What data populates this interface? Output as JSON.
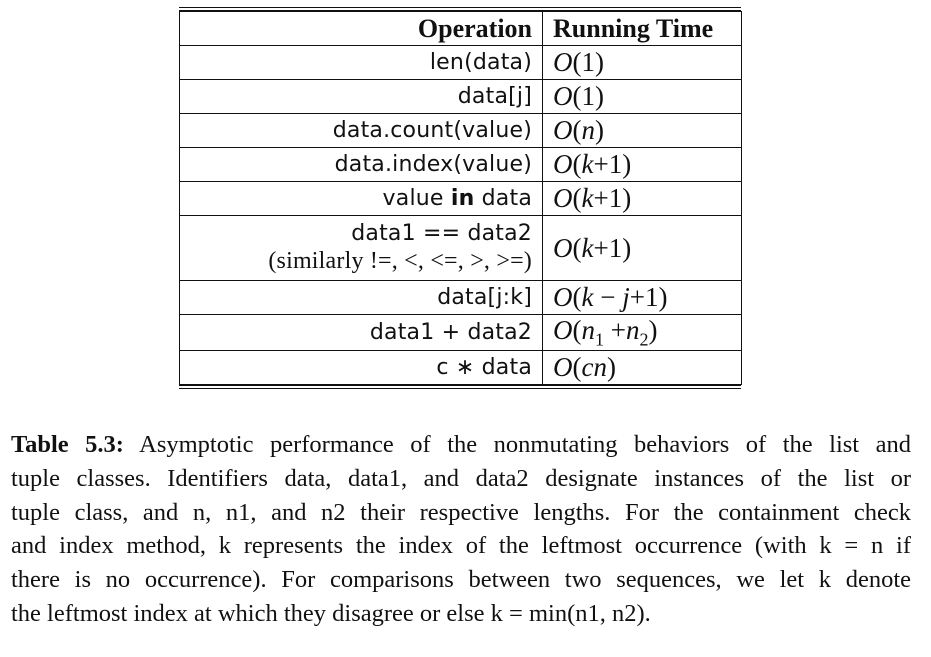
{
  "table": {
    "headers": {
      "operation": "Operation",
      "running_time": "Running Time"
    },
    "rows": [
      {
        "operation": "len(data)",
        "running_time": "O(1)"
      },
      {
        "operation": "data[j]",
        "running_time": "O(1)"
      },
      {
        "operation": "data.count(value)",
        "running_time": "O(n)"
      },
      {
        "operation": "data.index(value)",
        "running_time": "O(k+1)"
      },
      {
        "operation_pre": "value ",
        "operation_kw": "in",
        "operation_post": " data",
        "running_time": "O(k+1)"
      },
      {
        "operation": "data1 == data2",
        "operation_note": "(similarly !=, <, <=, >, >=)",
        "running_time": "O(k+1)"
      },
      {
        "operation": "data[j:k]",
        "running_time": "O(k − j+1)"
      },
      {
        "operation": "data1 + data2",
        "running_time": "O(n1 +n2)"
      },
      {
        "operation": "c ∗ data",
        "running_time": "O(cn)"
      }
    ]
  },
  "caption": {
    "label": "Table 5.3:",
    "lines": [
      "Asymptotic performance of the nonmutating behaviors of the list and",
      "tuple classes. Identifiers data, data1, and data2 designate instances of the list or",
      "tuple class, and n, n1, and n2 their respective lengths. For the containment check",
      "and index method, k represents the index of the leftmost occurrence (with k = n if",
      "there is no occurrence). For comparisons between two sequences, we let k denote",
      "the leftmost index at which they disagree or else k = min(n1, n2)."
    ]
  }
}
